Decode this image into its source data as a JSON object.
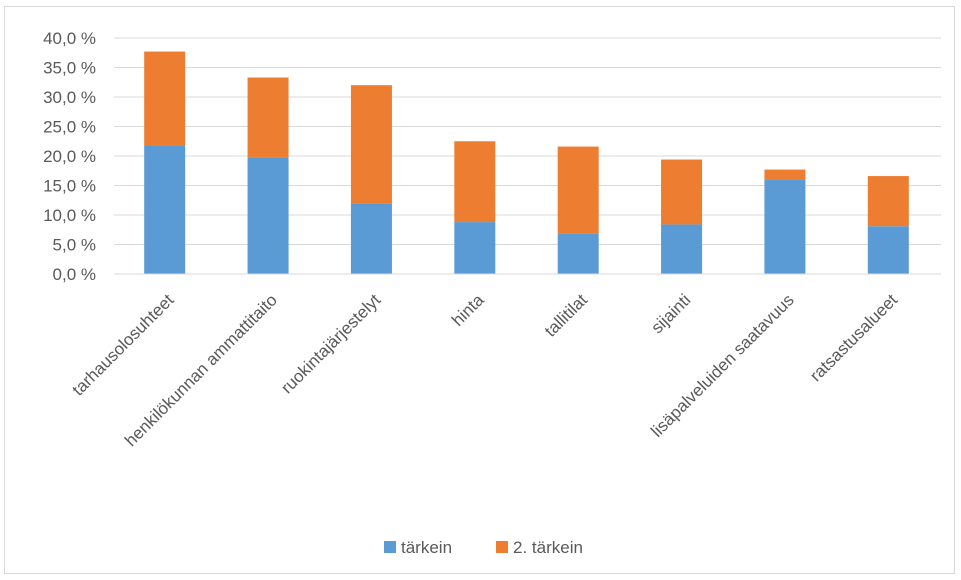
{
  "chart_data": {
    "type": "bar",
    "stacked": true,
    "categories": [
      "tarhausolosuhteet",
      "henkilökunnan ammattitaito",
      "ruokintajärjestelyt",
      "hinta",
      "tallitilat",
      "sijainti",
      "lisäpalveluiden saatavuus",
      "ratsastusalueet"
    ],
    "series": [
      {
        "name": "tärkein",
        "color": "#5b9bd5",
        "values": [
          21.7,
          19.8,
          12.0,
          8.8,
          6.9,
          8.4,
          16.0,
          8.1
        ]
      },
      {
        "name": "2. tärkein",
        "color": "#ed7d31",
        "values": [
          16.0,
          13.5,
          20.0,
          13.7,
          14.7,
          11.0,
          1.7,
          8.5
        ]
      }
    ],
    "yticks": [
      "0,0 %",
      "5,0 %",
      "10,0 %",
      "15,0 %",
      "20,0 %",
      "25,0 %",
      "30,0 %",
      "35,0 %",
      "40,0 %"
    ],
    "ylim": [
      0,
      40
    ],
    "title": "",
    "xlabel": "",
    "ylabel": "",
    "grid": true,
    "legend_position": "bottom"
  }
}
